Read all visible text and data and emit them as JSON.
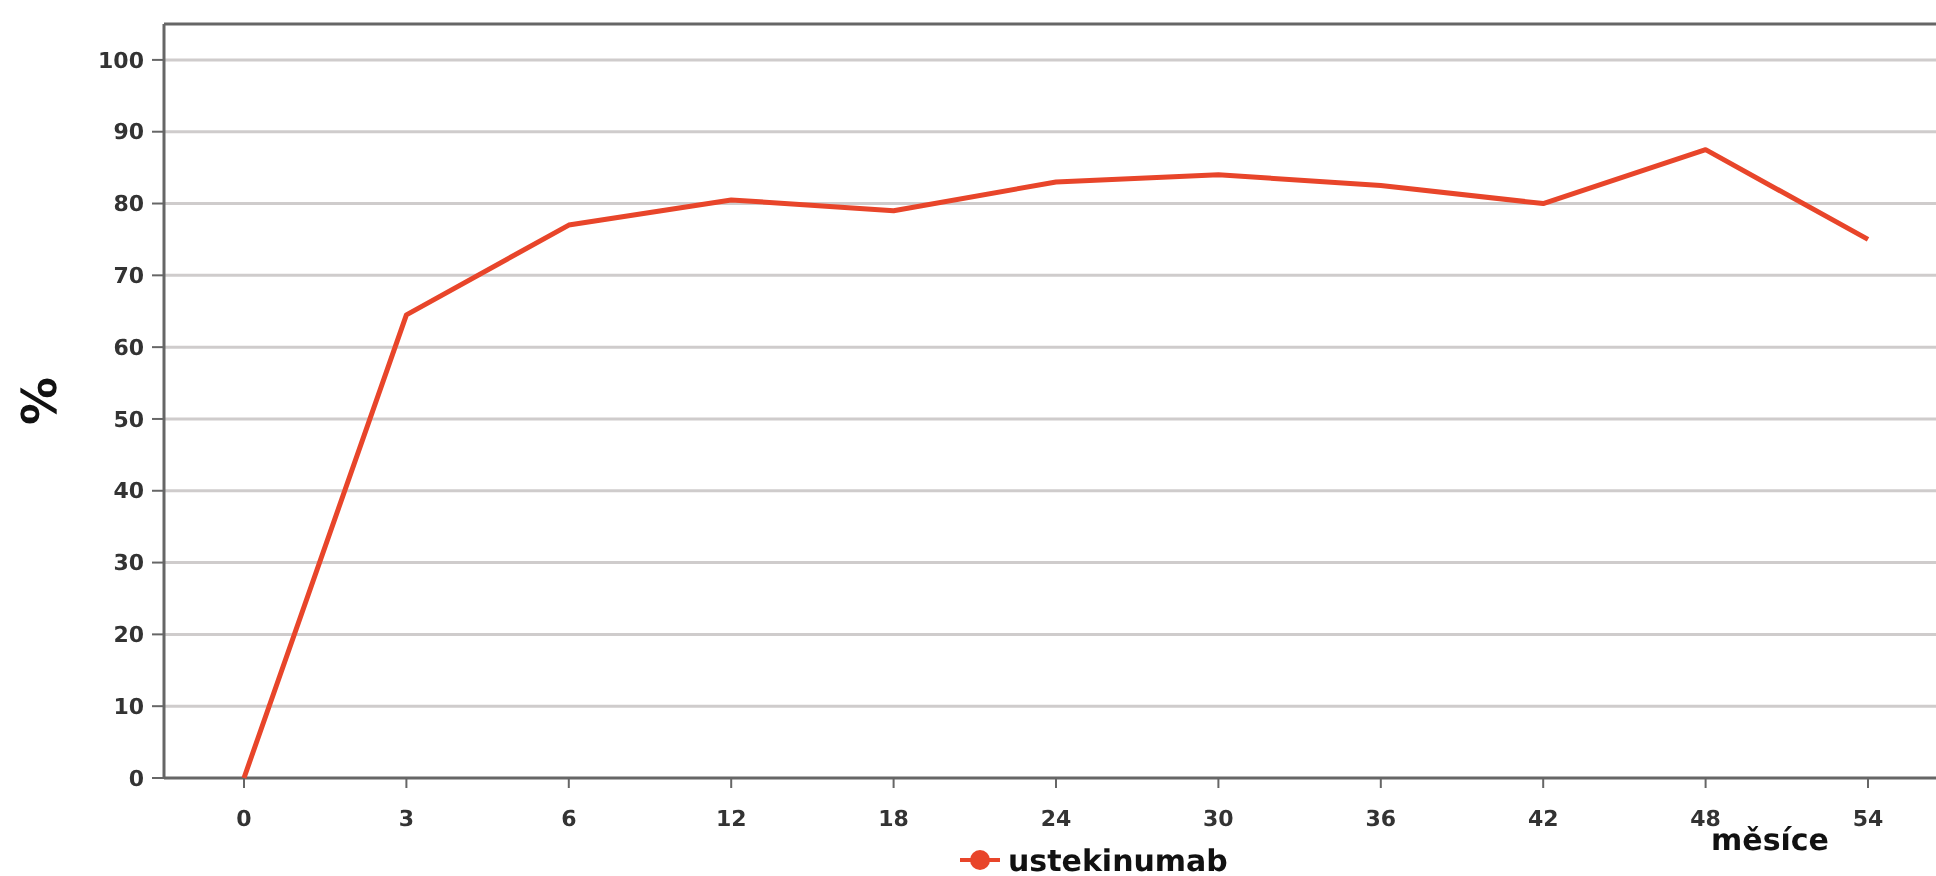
{
  "chart_data": {
    "type": "line",
    "xlabel": "měsíce",
    "ylabel": "%",
    "categories": [
      "0",
      "3",
      "6",
      "12",
      "18",
      "24",
      "30",
      "36",
      "42",
      "48",
      "54"
    ],
    "series": [
      {
        "name": "ustekinumab",
        "color": "#e8452a",
        "values": [
          0,
          64.5,
          77,
          80.5,
          79,
          83,
          84,
          82.5,
          80,
          87.5,
          75
        ]
      }
    ],
    "ylim": [
      0,
      105
    ],
    "yticks": [
      0,
      10,
      20,
      30,
      40,
      50,
      60,
      70,
      80,
      90,
      100
    ],
    "grid": "y",
    "legend": "bottom"
  }
}
